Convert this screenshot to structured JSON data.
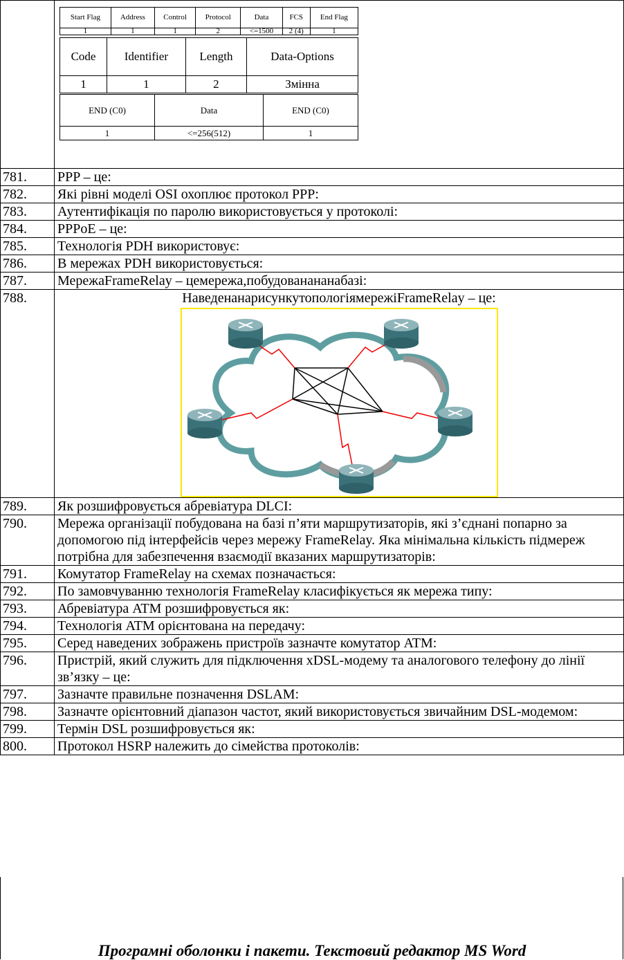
{
  "top_tables": {
    "ppp_frame": {
      "headers": [
        "Start Flag",
        "Address",
        "Control",
        "Protocol",
        "Data",
        "FCS",
        "End Flag"
      ],
      "values": [
        "1",
        "1",
        "1",
        "2",
        "<=1500",
        "2 (4)",
        "1"
      ]
    },
    "lcp_packet": {
      "headers": [
        "Code",
        "Identifier",
        "Length",
        "Data-Options"
      ],
      "values": [
        "1",
        "1",
        "2",
        "Змінна"
      ]
    },
    "slip_frame": {
      "headers": [
        "END (C0)",
        "Data",
        "END (C0)"
      ],
      "values": [
        "1",
        "<=256(512)",
        "1"
      ]
    }
  },
  "questions": [
    {
      "number": "781.",
      "text": "PPP – це:"
    },
    {
      "number": "782.",
      "text": "Які рівні моделі OSI охоплює протокол PPP:"
    },
    {
      "number": "783.",
      "text": "Аутентифікація по паролю використовується у протоколі:"
    },
    {
      "number": "784.",
      "text": "PPPoE – це:"
    },
    {
      "number": "785.",
      "text": "Технологія PDH використовує:"
    },
    {
      "number": "786.",
      "text": "В мережах PDH використовується:"
    },
    {
      "number": "787.",
      "text": "МережаFrameRelay – цемережа,побудованананабазі:"
    },
    {
      "number": "788.",
      "text": "НаведенанарисункутопологіямережіFrameRelay – це:"
    },
    {
      "number": "789.",
      "text": "Як розшифровується абревіатура DLCI:"
    },
    {
      "number": "790.",
      "text": "Мережа організації побудована на базі п’яти маршрутизаторів, які з’єднані попарно за допомогою під інтерфейсів через мережу FrameRelay. Яка мінімальна кількість підмереж потрібна для забезпечення взаємодії вказаних маршрутизаторів:"
    },
    {
      "number": "791.",
      "text": "Комутатор FrameRelay на схемах позначається:"
    },
    {
      "number": "792.",
      "text": "По замовчуванню технологія FrameRelay класифікується як мережа типу:"
    },
    {
      "number": "793.",
      "text": "Абревіатура ATM розшифровується як:"
    },
    {
      "number": "794.",
      "text": "Технологія ATM орієнтована на передачу:"
    },
    {
      "number": "795.",
      "text": "Серед наведених зображень пристроїв зазначте комутатор ATM:"
    },
    {
      "number": "796.",
      "text": "Пристрій, який служить для підключення xDSL-модему та аналогового телефону до лінії зв’язку – це:"
    },
    {
      "number": "797.",
      "text": "Зазначте правильне позначення DSLAM:"
    },
    {
      "number": "798.",
      "text": "Зазначте орієнтовний діапазон частот, який використовується звичайним DSL-модемом:"
    },
    {
      "number": "799.",
      "text": "Термін DSL розшифровується як:"
    },
    {
      "number": "800.",
      "text": "Протокол HSRP належить до сімейства протоколів:"
    }
  ],
  "section_heading": "Програмні оболонки і пакети. Текстовий редактор MS Word"
}
